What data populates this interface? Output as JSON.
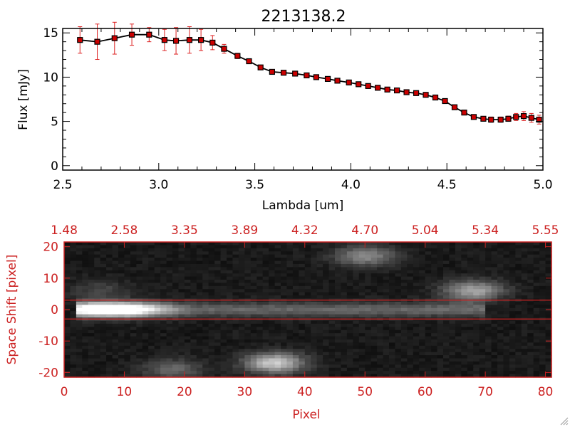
{
  "chart_data": [
    {
      "type": "line",
      "title": "2213138.2",
      "xlabel": "Lambda [um]",
      "ylabel": "Flux [mJy]",
      "xlim": [
        2.5,
        5.0
      ],
      "ylim": [
        -0.5,
        15.5
      ],
      "xticks": [
        "2.5",
        "3.0",
        "3.5",
        "4.0",
        "4.5",
        "5.0"
      ],
      "yticks": [
        "0",
        "5",
        "10",
        "15"
      ],
      "grid": false,
      "colors": {
        "line": "#000000",
        "marker": "#cc0000",
        "error": "#dd2222"
      },
      "series": [
        {
          "x": [
            2.59,
            2.68,
            2.77,
            2.86,
            2.95,
            3.03,
            3.09,
            3.16,
            3.22,
            3.28,
            3.34,
            3.41,
            3.47,
            3.53,
            3.59,
            3.65,
            3.71,
            3.77,
            3.82,
            3.88,
            3.93,
            3.99,
            4.04,
            4.09,
            4.14,
            4.19,
            4.24,
            4.29,
            4.34,
            4.39,
            4.44,
            4.49,
            4.54,
            4.59,
            4.64,
            4.69,
            4.73,
            4.78,
            4.82,
            4.86,
            4.9,
            4.94,
            4.98
          ],
          "y": [
            14.2,
            14.0,
            14.4,
            14.8,
            14.8,
            14.2,
            14.1,
            14.2,
            14.2,
            13.9,
            13.2,
            12.4,
            11.8,
            11.1,
            10.6,
            10.5,
            10.4,
            10.2,
            10.0,
            9.8,
            9.6,
            9.4,
            9.2,
            9.0,
            8.8,
            8.6,
            8.5,
            8.3,
            8.2,
            8.0,
            7.7,
            7.3,
            6.6,
            6.0,
            5.5,
            5.3,
            5.2,
            5.2,
            5.3,
            5.5,
            5.6,
            5.4,
            5.2
          ],
          "err": [
            1.5,
            2.0,
            1.8,
            1.2,
            0.8,
            1.2,
            1.5,
            1.5,
            1.2,
            0.8,
            0.5,
            0.3,
            0.2,
            0.2,
            0.2,
            0.2,
            0.2,
            0.2,
            0.2,
            0.2,
            0.2,
            0.2,
            0.2,
            0.2,
            0.2,
            0.2,
            0.2,
            0.2,
            0.2,
            0.2,
            0.2,
            0.2,
            0.2,
            0.2,
            0.2,
            0.2,
            0.3,
            0.3,
            0.3,
            0.4,
            0.5,
            0.5,
            0.5
          ]
        }
      ]
    },
    {
      "type": "heatmap",
      "xlabel": "Pixel",
      "ylabel": "Space Shift [pixel]",
      "xlim": [
        0,
        81
      ],
      "ylim": [
        -21.5,
        21.5
      ],
      "xticks": [
        "0",
        "10",
        "20",
        "30",
        "40",
        "50",
        "60",
        "70",
        "80"
      ],
      "yticks": [
        "-20",
        "-10",
        "0",
        "10",
        "20"
      ],
      "top_axis_ticks": [
        "1.48",
        "2.58",
        "3.35",
        "3.89",
        "4.32",
        "4.70",
        "5.04",
        "5.34",
        "5.55"
      ],
      "extraction_lines_y": [
        3,
        -3
      ],
      "colormap": "grayscale",
      "colors": {
        "axis": "#cc2222",
        "lines": "#cc2222"
      },
      "sources": [
        {
          "name": "trace",
          "x0": 2,
          "x1": 70,
          "y": 0,
          "peak_x": 8,
          "peak": 1.0,
          "tail": 0.3
        },
        {
          "name": "blob-upper-middle",
          "x": 50,
          "y": 17,
          "amp": 0.45
        },
        {
          "name": "blob-upper-right",
          "x": 68,
          "y": 6,
          "amp": 0.55
        },
        {
          "name": "blob-lower-middle",
          "x": 35,
          "y": -17,
          "amp": 0.7
        },
        {
          "name": "blob-lower-left",
          "x": 18,
          "y": -19,
          "amp": 0.3
        },
        {
          "name": "blob-upper-left",
          "x": 6,
          "y": 6,
          "amp": 0.18
        }
      ]
    }
  ]
}
